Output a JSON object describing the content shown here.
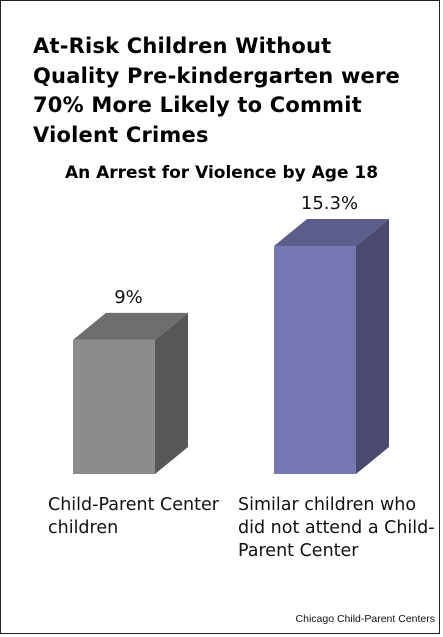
{
  "chart_data": {
    "type": "bar",
    "title": "At-Risk Children Without Quality Pre-kindergarten were 70% More Likely to Commit Violent Crimes",
    "subtitle": "An Arrest for Violence by Age 18",
    "categories": [
      "Child-Parent Center children",
      "Similar children who did not attend a Child-Parent Center"
    ],
    "values": [
      9,
      15.3
    ],
    "value_labels": [
      "9%",
      "15.3%"
    ],
    "ylim": [
      0,
      16
    ],
    "grid": false,
    "colors": {
      "bar_0": "#8c8c8c",
      "bar_1": "#7777b4"
    },
    "source": "Chicago Child-Parent Centers"
  }
}
